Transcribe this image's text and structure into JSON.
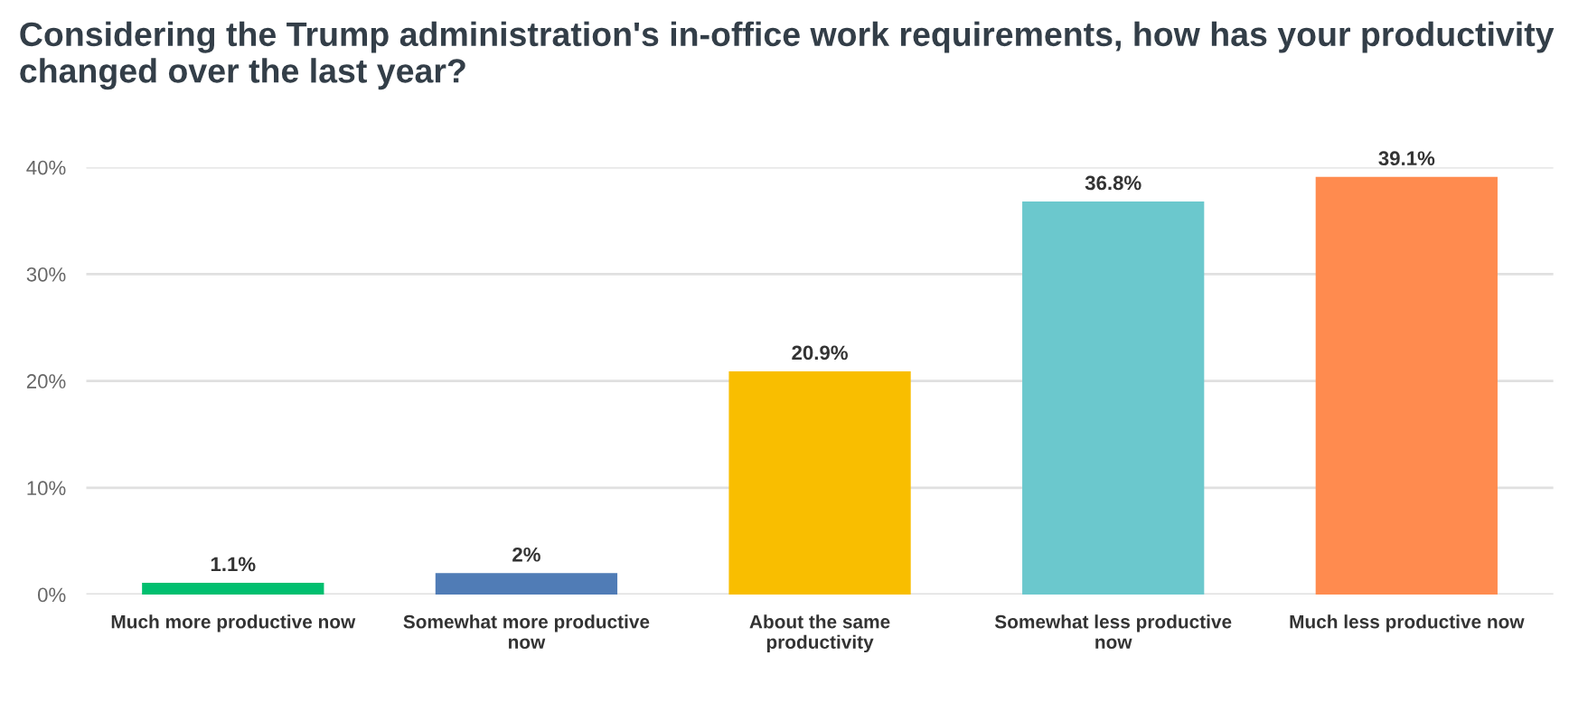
{
  "chart_data": {
    "type": "bar",
    "title": "Considering the Trump administration's in-office work requirements, how has your productivity changed over the last year?",
    "categories": [
      "Much more productive now",
      "Somewhat more productive now",
      "About the same productivity",
      "Somewhat less productive now",
      "Much less productive now"
    ],
    "values": [
      1.1,
      2,
      20.9,
      36.8,
      39.1
    ],
    "colors": [
      "#00bf6f",
      "#507cb6",
      "#f9be00",
      "#6bc8cd",
      "#ff8b4f"
    ],
    "value_labels": [
      "1.1%",
      "2%",
      "20.9%",
      "36.8%",
      "39.1%"
    ],
    "ylim": [
      0,
      40
    ],
    "yticks": [
      {
        "value": 0,
        "label": "0%"
      },
      {
        "value": 10,
        "label": "10%"
      },
      {
        "value": 20,
        "label": "20%"
      },
      {
        "value": 30,
        "label": "30%"
      },
      {
        "value": 40,
        "label": "40%"
      }
    ],
    "grid": "y"
  }
}
